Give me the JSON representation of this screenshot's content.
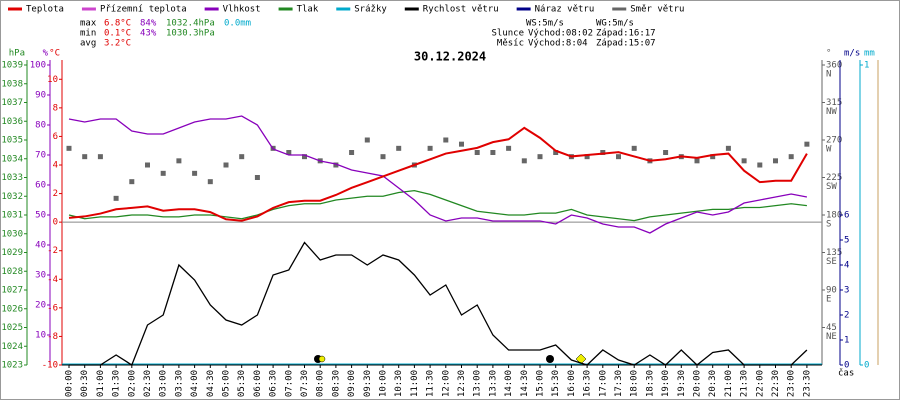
{
  "legend": [
    {
      "name": "Teplota",
      "color": "#e00000"
    },
    {
      "name": "Přízemní teplota",
      "color": "#cc44cc"
    },
    {
      "name": "Vlhkost",
      "color": "#8800bb"
    },
    {
      "name": "Tlak",
      "color": "#228822"
    },
    {
      "name": "Srážky",
      "color": "#00aacc"
    },
    {
      "name": "Rychlost větru",
      "color": "#000000"
    },
    {
      "name": "Náraz větru",
      "color": "#000088"
    },
    {
      "name": "Směr větru",
      "color": "#666666"
    }
  ],
  "stats": {
    "max": [
      "max",
      "6.8°C",
      "84%",
      "1032.4hPa",
      "0.0mm"
    ],
    "min": [
      "min",
      "0.1°C",
      "43%",
      "1030.3hPa"
    ],
    "avg": [
      "avg",
      "3.2°C"
    ]
  },
  "astro": {
    "ws": "WS:5m/s",
    "wg": "WG:5m/s",
    "sun": [
      "Slunce",
      "Východ:08:02",
      "Západ:16:17"
    ],
    "moon": [
      "Měsíc",
      "Východ:8:04",
      "Západ:15:07"
    ]
  },
  "chart_data": {
    "type": "line",
    "title": "30.12.2024",
    "x_label": "čas",
    "categories": [
      "00:00",
      "00:30",
      "01:00",
      "01:30",
      "02:00",
      "02:30",
      "03:00",
      "03:30",
      "04:00",
      "04:30",
      "05:00",
      "05:30",
      "06:00",
      "06:30",
      "07:00",
      "07:30",
      "08:00",
      "08:30",
      "09:00",
      "09:30",
      "10:00",
      "10:30",
      "11:00",
      "11:30",
      "12:00",
      "12:30",
      "13:00",
      "13:30",
      "14:00",
      "14:30",
      "15:00",
      "15:30",
      "16:00",
      "16:30",
      "17:00",
      "17:30",
      "18:00",
      "18:30",
      "19:00",
      "19:30",
      "20:00",
      "20:30",
      "21:00",
      "21:30",
      "22:00",
      "22:30",
      "23:00",
      "23:30"
    ],
    "axes": {
      "y": {
        "unit": "hPa",
        "color": "#228822",
        "side": "left",
        "lim": [
          1023,
          1039
        ],
        "ticks": [
          1023,
          1024,
          1025,
          1026,
          1027,
          1028,
          1029,
          1030,
          1031,
          1032,
          1033,
          1034,
          1035,
          1036,
          1037,
          1038,
          1039
        ]
      },
      "y2": {
        "unit": "%",
        "color": "#8800bb",
        "side": "left",
        "lim": [
          0,
          100
        ],
        "ticks": [
          10,
          20,
          30,
          40,
          50,
          60,
          70,
          80,
          90,
          100
        ]
      },
      "y3": {
        "unit": "°C",
        "color": "#e00000",
        "side": "left",
        "lim": [
          -10,
          11
        ],
        "ticks": [
          -10,
          -8,
          -6,
          -4,
          -2,
          0,
          2,
          4,
          6,
          8,
          10
        ]
      },
      "y4": {
        "unit": "°",
        "color": "#666666",
        "side": "right",
        "lim": [
          0,
          360
        ],
        "ticks": [
          45,
          90,
          135,
          180,
          225,
          270,
          315,
          360
        ],
        "tick_names": [
          "NE",
          "E",
          "SE",
          "S",
          "SW",
          "W",
          "NW",
          "N"
        ]
      },
      "y5": {
        "unit": "m/s",
        "color": "#000088",
        "side": "right",
        "lim": [
          0,
          12
        ],
        "ticks": [
          0,
          1,
          2,
          3,
          4,
          5,
          6
        ]
      },
      "y6": {
        "unit": "mm",
        "color": "#00aacc",
        "side": "right",
        "lim": [
          0,
          1
        ],
        "ticks": [
          0,
          1
        ]
      }
    },
    "series": [
      {
        "name": "Rychlost větru",
        "color": "#000000",
        "axis": "y5",
        "type": "line",
        "values": [
          0,
          0,
          0,
          0.4,
          0,
          1.6,
          2.0,
          4.0,
          3.4,
          2.4,
          1.8,
          1.6,
          2.0,
          3.6,
          3.8,
          4.9,
          4.2,
          4.4,
          4.4,
          4.0,
          4.4,
          4.2,
          3.6,
          2.8,
          3.2,
          2.0,
          2.4,
          1.2,
          0.6,
          0.6,
          0.6,
          0.8,
          0.2,
          0,
          0.6,
          0.2,
          0,
          0.4,
          0,
          0.6,
          0,
          0.5,
          0.6,
          0,
          0,
          0,
          0,
          0.6
        ]
      },
      {
        "name": "Směr větru",
        "color": "#666666",
        "axis": "y4",
        "type": "scatter",
        "values": [
          260,
          250,
          250,
          200,
          220,
          240,
          230,
          245,
          230,
          220,
          240,
          250,
          225,
          260,
          255,
          250,
          245,
          240,
          255,
          270,
          250,
          260,
          240,
          260,
          270,
          265,
          255,
          255,
          260,
          245,
          250,
          255,
          250,
          250,
          255,
          250,
          260,
          245,
          255,
          250,
          245,
          250,
          260,
          245,
          240,
          245,
          250,
          265
        ]
      },
      {
        "name": "Tlak",
        "color": "#228822",
        "axis": "y",
        "type": "line",
        "values": [
          1031.0,
          1030.8,
          1030.9,
          1030.9,
          1031.0,
          1031.0,
          1030.9,
          1030.9,
          1031.0,
          1031.0,
          1030.9,
          1030.8,
          1031.0,
          1031.3,
          1031.5,
          1031.6,
          1031.6,
          1031.8,
          1031.9,
          1032.0,
          1032.0,
          1032.2,
          1032.3,
          1032.1,
          1031.8,
          1031.5,
          1031.2,
          1031.1,
          1031.0,
          1031.0,
          1031.1,
          1031.1,
          1031.3,
          1031.0,
          1030.9,
          1030.8,
          1030.7,
          1030.9,
          1031.0,
          1031.1,
          1031.2,
          1031.3,
          1031.3,
          1031.4,
          1031.4,
          1031.5,
          1031.6,
          1031.5
        ]
      },
      {
        "name": "Vlhkost",
        "color": "#8800bb",
        "axis": "y2",
        "type": "line",
        "values": [
          82,
          81,
          82,
          82,
          78,
          77,
          77,
          79,
          81,
          82,
          82,
          83,
          80,
          72,
          70,
          70,
          68,
          67,
          65,
          64,
          63,
          59,
          55,
          50,
          48,
          49,
          49,
          48,
          48,
          48,
          48,
          47,
          50,
          49,
          47,
          46,
          46,
          44,
          47,
          49,
          51,
          50,
          51,
          54,
          55,
          56,
          57,
          56
        ]
      },
      {
        "name": "Teplota",
        "color": "#e00000",
        "axis": "y3",
        "type": "line",
        "width": 2,
        "values": [
          0.3,
          0.4,
          0.6,
          0.9,
          1.0,
          1.1,
          0.8,
          0.9,
          0.9,
          0.7,
          0.2,
          0.1,
          0.4,
          1.0,
          1.4,
          1.5,
          1.5,
          1.9,
          2.4,
          2.8,
          3.2,
          3.6,
          4.0,
          4.4,
          4.8,
          5.0,
          5.2,
          5.6,
          5.8,
          6.6,
          5.9,
          5.0,
          4.6,
          4.7,
          4.8,
          4.9,
          4.6,
          4.3,
          4.4,
          4.6,
          4.5,
          4.7,
          4.8,
          3.6,
          2.8,
          2.9,
          2.9,
          4.8
        ]
      }
    ]
  }
}
